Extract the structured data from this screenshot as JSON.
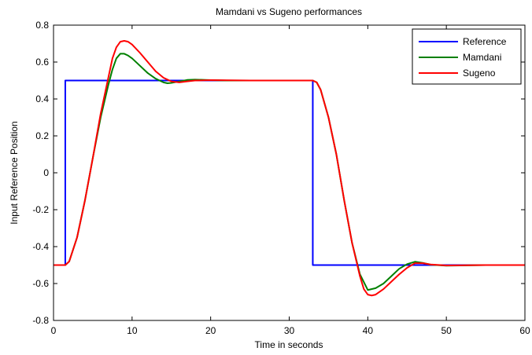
{
  "chart_data": {
    "type": "line",
    "title": "Mamdani vs Sugeno performances",
    "xlabel": "Time in seconds",
    "ylabel": "Input Reference Position",
    "xlim": [
      0,
      60
    ],
    "ylim": [
      -0.8,
      0.8
    ],
    "xticks": [
      0,
      10,
      20,
      30,
      40,
      50,
      60
    ],
    "yticks": [
      -0.8,
      -0.6,
      -0.4,
      -0.2,
      0,
      0.2,
      0.4,
      0.6,
      0.8
    ],
    "xtick_labels": [
      "0",
      "10",
      "20",
      "30",
      "40",
      "50",
      "60"
    ],
    "ytick_labels": [
      "-0.8",
      "-0.6",
      "-0.4",
      "-0.2",
      "0",
      "0.2",
      "0.4",
      "0.6",
      "0.8"
    ],
    "grid": false,
    "legend_position": "top-right",
    "series": [
      {
        "name": "Reference",
        "color": "#0000ff",
        "x": [
          0,
          1.5,
          1.5,
          33,
          33,
          60
        ],
        "y": [
          -0.5,
          -0.5,
          0.5,
          0.5,
          -0.5,
          -0.5
        ]
      },
      {
        "name": "Mamdani",
        "color": "#008000",
        "x": [
          0,
          1.5,
          2,
          3,
          4,
          5,
          6,
          7,
          7.5,
          8,
          8.5,
          9,
          9.5,
          10,
          11,
          12,
          13,
          14,
          14.5,
          15,
          16,
          17,
          18,
          20,
          22,
          25,
          30,
          32,
          33,
          33.5,
          34,
          35,
          36,
          37,
          38,
          39,
          40,
          41,
          42,
          43,
          44,
          45,
          46,
          47,
          48,
          50,
          55,
          60
        ],
        "y": [
          -0.5,
          -0.5,
          -0.48,
          -0.35,
          -0.15,
          0.08,
          0.3,
          0.48,
          0.56,
          0.62,
          0.645,
          0.645,
          0.635,
          0.62,
          0.58,
          0.54,
          0.51,
          0.49,
          0.485,
          0.487,
          0.495,
          0.503,
          0.505,
          0.502,
          0.5,
          0.5,
          0.5,
          0.5,
          0.5,
          0.49,
          0.45,
          0.3,
          0.1,
          -0.15,
          -0.38,
          -0.55,
          -0.635,
          -0.625,
          -0.6,
          -0.56,
          -0.52,
          -0.495,
          -0.482,
          -0.488,
          -0.498,
          -0.503,
          -0.5,
          -0.5
        ]
      },
      {
        "name": "Sugeno",
        "color": "#ff0000",
        "x": [
          0,
          1.5,
          2,
          3,
          4,
          5,
          6,
          7,
          7.5,
          8,
          8.5,
          9,
          9.5,
          10,
          11,
          12,
          13,
          14,
          15,
          16,
          17,
          18,
          20,
          25,
          30,
          32,
          33,
          33.5,
          34,
          35,
          36,
          37,
          38,
          39,
          39.5,
          40,
          40.5,
          41,
          42,
          43,
          44,
          45,
          46,
          47,
          48,
          50,
          55,
          60
        ],
        "y": [
          -0.5,
          -0.5,
          -0.48,
          -0.35,
          -0.15,
          0.08,
          0.32,
          0.52,
          0.62,
          0.68,
          0.71,
          0.715,
          0.71,
          0.695,
          0.65,
          0.6,
          0.55,
          0.515,
          0.495,
          0.49,
          0.495,
          0.5,
          0.502,
          0.5,
          0.5,
          0.5,
          0.5,
          0.49,
          0.45,
          0.3,
          0.1,
          -0.15,
          -0.38,
          -0.56,
          -0.63,
          -0.66,
          -0.665,
          -0.66,
          -0.63,
          -0.59,
          -0.55,
          -0.515,
          -0.49,
          -0.49,
          -0.497,
          -0.502,
          -0.5,
          -0.5
        ]
      }
    ]
  }
}
